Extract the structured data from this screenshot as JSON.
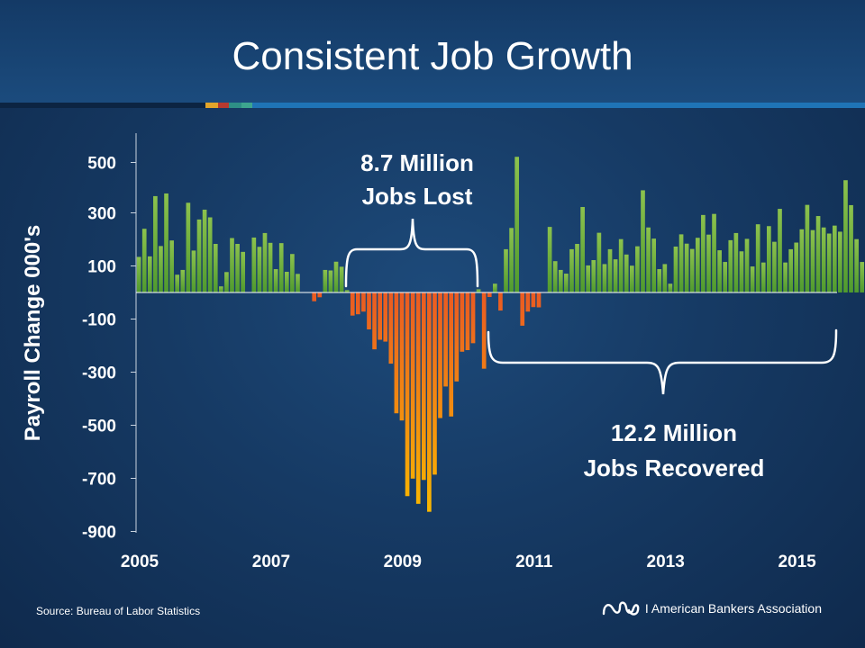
{
  "slide": {
    "title": "Consistent Job Growth",
    "source": "Source: Bureau of Labor Statistics",
    "org_name": "I American Bankers Association",
    "colors": {
      "positive": "#6db33f",
      "negative_top": "#ea5a22",
      "negative_bottom": "#f9b800",
      "stripe_navy": "#0c2442",
      "stripe_gold": "#e2a52b",
      "stripe_red": "#b73a2f",
      "stripe_teal": "#2e8f86",
      "stripe_blue": "#1f74b6"
    }
  },
  "chart_data": {
    "type": "bar",
    "title": "Consistent Job Growth",
    "xlabel": "",
    "ylabel": "Payroll Change 000's",
    "ylim": [
      -900,
      600
    ],
    "y_ticks": [
      500,
      300,
      100,
      -100,
      -300,
      -500,
      -700,
      -900
    ],
    "x_tick_labels": [
      "2005",
      "2007",
      "2009",
      "2011",
      "2013",
      "2015"
    ],
    "x_tick_years": [
      2005,
      2007,
      2009,
      2011,
      2013,
      2015
    ],
    "start_year": 2005,
    "start_month": 1,
    "values": [
      134,
      240,
      136,
      363,
      175,
      373,
      196,
      67,
      85,
      338,
      158,
      275,
      312,
      283,
      183,
      23,
      77,
      205,
      183,
      153,
      0,
      207,
      172,
      224,
      187,
      88,
      186,
      78,
      145,
      70,
      0,
      0,
      -33,
      -18,
      85,
      83,
      116,
      97,
      9,
      -87,
      -82,
      -72,
      -139,
      -214,
      -178,
      -185,
      -268,
      -455,
      -482,
      -767,
      -701,
      -796,
      -706,
      -826,
      -686,
      -473,
      -354,
      -467,
      -335,
      -223,
      -217,
      -191,
      12,
      -287,
      -17,
      33,
      -68,
      163,
      243,
      511,
      -125,
      -72,
      -55,
      -56,
      0,
      247,
      118,
      85,
      71,
      163,
      183,
      322,
      102,
      122,
      225,
      107,
      163,
      125,
      201,
      143,
      101,
      174,
      385,
      245,
      203,
      88,
      107,
      33,
      173,
      219,
      184,
      164,
      206,
      292,
      218,
      296,
      159,
      115,
      197,
      224,
      155,
      202,
      98,
      257,
      113,
      250,
      191,
      315,
      113,
      163,
      188,
      238,
      330,
      235,
      288,
      245,
      222,
      252,
      229,
      423,
      329,
      201,
      115,
      267,
      86,
      187,
      253,
      223
    ],
    "annotations": [
      {
        "text_line1": "8.7 Million",
        "text_line2": "Jobs Lost"
      },
      {
        "text_line1": "12.2 Million",
        "text_line2": "Jobs Recovered"
      }
    ]
  }
}
